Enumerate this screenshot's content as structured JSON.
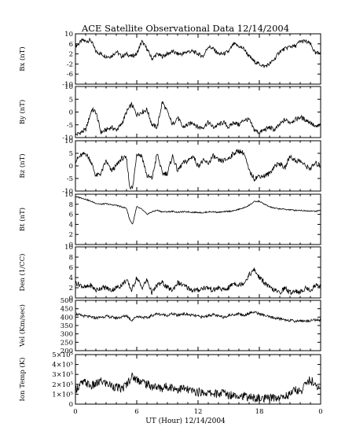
{
  "figure": {
    "title": "ACE Satellite Observational Data   12/14/2004",
    "xlabel": "UT (Hour)   12/14/2004"
  },
  "chart_data": [
    {
      "type": "line",
      "ylabel": "Bx (nT)",
      "xlim": [
        0,
        24
      ],
      "ylim": [
        -10,
        10
      ],
      "yticks": [
        "10",
        "6",
        "2",
        "-2",
        "-6",
        "-10"
      ],
      "xticks": [
        "0",
        "6",
        "12",
        "18",
        "0"
      ],
      "grid": false,
      "series": [
        {
          "x": [
            0,
            0.3,
            0.7,
            1,
            1.5,
            2,
            2.5,
            3,
            3.5,
            4,
            4.5,
            5,
            5.5,
            6,
            6.5,
            7,
            7.5,
            8,
            8.5,
            9,
            9.5,
            10,
            10.5,
            11,
            11.5,
            12,
            12.5,
            13,
            13.5,
            14,
            14.5,
            15,
            15.5,
            16,
            16.5,
            17,
            17.5,
            18,
            18.5,
            19,
            19.5,
            20,
            20.5,
            21,
            21.5,
            22,
            22.5,
            23,
            23.5,
            24
          ],
          "y": [
            5,
            6,
            7.5,
            7,
            7.5,
            3,
            2,
            1,
            1,
            3,
            1,
            2,
            1,
            2,
            7,
            4,
            0,
            2,
            1,
            2,
            3,
            2,
            2,
            3,
            3,
            2,
            1,
            5,
            4,
            2,
            2,
            3,
            6,
            5,
            4,
            1,
            -1,
            -2,
            -3,
            -2,
            0,
            3,
            4,
            5,
            5,
            7,
            7,
            6,
            2,
            3
          ]
        }
      ]
    },
    {
      "type": "line",
      "ylabel": "By (nT)",
      "xlim": [
        0,
        24
      ],
      "ylim": [
        -10,
        10
      ],
      "yticks": [
        "10",
        "5",
        "0",
        "-5",
        "-10"
      ],
      "xticks": [
        "0",
        "6",
        "12",
        "18",
        "0"
      ],
      "grid": false,
      "series": [
        {
          "x": [
            0,
            0.5,
            1,
            1.3,
            1.6,
            2,
            2.5,
            3,
            3.5,
            4,
            4.5,
            5,
            5.5,
            6,
            6.5,
            7,
            7.5,
            8,
            8.5,
            9,
            9.5,
            10,
            10.5,
            11,
            11.5,
            12,
            12.5,
            13,
            13.5,
            14,
            14.5,
            15,
            15.5,
            16,
            16.5,
            17,
            17.5,
            18,
            18.5,
            19,
            19.5,
            20,
            20.5,
            21,
            21.5,
            22,
            22.5,
            23,
            23.5,
            24
          ],
          "y": [
            -9,
            -8,
            -7,
            -3,
            1,
            0,
            -8,
            -7,
            -6,
            -7,
            -5,
            0,
            3,
            -1,
            0,
            1,
            -5,
            -6,
            4,
            0,
            -5,
            -2,
            -6,
            -5,
            -4,
            -6,
            -6,
            -4,
            -6,
            -5,
            -4,
            -6,
            -4,
            -5,
            -3,
            -3,
            -7,
            -8,
            -7,
            -6,
            -7,
            -5,
            -3,
            -4,
            -3,
            -2,
            -3,
            -4,
            -6,
            -5
          ]
        }
      ]
    },
    {
      "type": "line",
      "ylabel": "Bz (nT)",
      "xlim": [
        0,
        24
      ],
      "ylim": [
        -10,
        10
      ],
      "yticks": [
        "10",
        "5",
        "0",
        "-5",
        "-10"
      ],
      "xticks": [
        "0",
        "6",
        "12",
        "18",
        "0"
      ],
      "grid": false,
      "series": [
        {
          "x": [
            0,
            0.5,
            1,
            1.5,
            2,
            2.5,
            3,
            3.5,
            4,
            4.5,
            5,
            5.3,
            5.6,
            6,
            6.5,
            7,
            7.5,
            8,
            8.5,
            9,
            9.5,
            10,
            10.5,
            11,
            11.5,
            12,
            12.5,
            13,
            13.5,
            14,
            14.5,
            15,
            15.5,
            16,
            16.5,
            17,
            17.5,
            18,
            18.5,
            19,
            19.5,
            20,
            20.5,
            21,
            21.5,
            22,
            22.5,
            23,
            23.5,
            24
          ],
          "y": [
            2,
            4,
            5,
            2,
            -4,
            -3,
            2,
            -2,
            0,
            3,
            3,
            -8,
            -9,
            5,
            4,
            -4,
            -5,
            5,
            -3,
            -3,
            4,
            -2,
            1,
            2,
            4,
            0,
            2,
            1,
            4,
            2,
            2,
            3,
            5,
            6,
            5,
            -2,
            -5,
            -4,
            -4,
            -3,
            0,
            1,
            -1,
            4,
            2,
            2,
            0,
            -1,
            1,
            0
          ]
        }
      ]
    },
    {
      "type": "line",
      "ylabel": "Bt (nT)",
      "xlim": [
        0,
        24
      ],
      "ylim": [
        0,
        10
      ],
      "yticks": [
        "10",
        "8",
        "6",
        "4",
        "2",
        "0"
      ],
      "xticks": [
        "0",
        "6",
        "12",
        "18",
        "0"
      ],
      "grid": false,
      "series": [
        {
          "x": [
            0,
            0.5,
            1,
            1.5,
            2,
            2.5,
            3,
            3.5,
            4,
            4.5,
            5,
            5.3,
            5.6,
            6,
            6.5,
            7,
            7.5,
            8,
            8.5,
            9,
            9.5,
            10,
            10.5,
            11,
            11.5,
            12,
            12.5,
            13,
            13.5,
            14,
            14.5,
            15,
            15.5,
            16,
            16.5,
            17,
            17.5,
            18,
            18.5,
            19,
            19.5,
            20,
            20.5,
            21,
            21.5,
            22,
            22.5,
            23,
            23.5,
            24
          ],
          "y": [
            9.5,
            9.3,
            9,
            8.6,
            8.2,
            8,
            8.1,
            7.9,
            7.8,
            7.5,
            7.2,
            5,
            4,
            7.5,
            7,
            6,
            6.5,
            6.8,
            6.5,
            6.5,
            6.6,
            6.4,
            6.5,
            6.5,
            6.4,
            6.4,
            6.3,
            6.5,
            6.5,
            6.4,
            6.5,
            6.6,
            6.7,
            7,
            7.3,
            7.8,
            8.5,
            8.6,
            8,
            7.5,
            7.2,
            7.1,
            7,
            6.9,
            6.8,
            6.8,
            6.7,
            6.7,
            6.6,
            6.8
          ]
        }
      ]
    },
    {
      "type": "line",
      "ylabel": "Den (1/CC)",
      "xlim": [
        0,
        24
      ],
      "ylim": [
        0,
        10
      ],
      "yticks": [
        "10",
        "8",
        "6",
        "4",
        "2",
        "0"
      ],
      "xticks": [
        "0",
        "6",
        "12",
        "18",
        "0"
      ],
      "grid": false,
      "series": [
        {
          "x": [
            0,
            0.5,
            1,
            1.5,
            2,
            2.5,
            3,
            3.5,
            4,
            4.5,
            5,
            5.5,
            6,
            6.5,
            7,
            7.5,
            8,
            8.5,
            9,
            9.5,
            10,
            10.5,
            11,
            11.5,
            12,
            12.5,
            13,
            13.5,
            14,
            14.5,
            15,
            15.5,
            16,
            16.5,
            17,
            17.5,
            18,
            18.5,
            19,
            19.5,
            20,
            20.5,
            21,
            21.5,
            22,
            22.5,
            23,
            23.5,
            24
          ],
          "y": [
            3,
            2.5,
            2,
            2.5,
            1.5,
            2,
            2,
            1.5,
            2,
            2.5,
            3.5,
            1.5,
            4,
            2,
            3.5,
            1,
            2.5,
            3,
            2,
            1.5,
            3,
            2.5,
            2,
            1.5,
            1.5,
            2,
            2,
            1.5,
            2,
            1.5,
            2,
            3,
            2.5,
            3,
            4.5,
            5.5,
            4,
            3,
            2,
            1.5,
            1,
            2,
            1,
            1.5,
            1,
            2,
            1.5,
            2.5,
            2.5
          ]
        }
      ]
    },
    {
      "type": "line",
      "ylabel": "Vel (Km/sec)",
      "xlim": [
        0,
        24
      ],
      "ylim": [
        200,
        500
      ],
      "yticks": [
        "500",
        "450",
        "400",
        "350",
        "300",
        "250",
        "200"
      ],
      "xticks": [
        "0",
        "6",
        "12",
        "18",
        "0"
      ],
      "grid": false,
      "series": [
        {
          "x": [
            0,
            0.5,
            1,
            1.5,
            2,
            2.5,
            3,
            3.5,
            4,
            4.5,
            5,
            5.5,
            6,
            6.5,
            7,
            7.5,
            8,
            8.5,
            9,
            9.5,
            10,
            10.5,
            11,
            11.5,
            12,
            12.5,
            13,
            13.5,
            14,
            14.5,
            15,
            15.5,
            16,
            16.5,
            17,
            17.5,
            18,
            18.5,
            19,
            19.5,
            20,
            20.5,
            21,
            21.5,
            22,
            22.5,
            23,
            23.5,
            24
          ],
          "y": [
            420,
            410,
            405,
            400,
            395,
            400,
            405,
            400,
            395,
            400,
            410,
            380,
            405,
            400,
            395,
            410,
            420,
            415,
            410,
            420,
            410,
            420,
            415,
            410,
            405,
            400,
            410,
            415,
            405,
            400,
            410,
            415,
            420,
            410,
            425,
            430,
            420,
            410,
            400,
            395,
            390,
            385,
            380,
            375,
            380,
            375,
            380,
            385,
            380
          ]
        }
      ]
    },
    {
      "type": "line",
      "ylabel": "Ion Temp (K)",
      "xlim": [
        0,
        24
      ],
      "ylim": [
        0,
        500000
      ],
      "yticks": [
        "5×10⁵",
        "4×10⁵",
        "3×10⁵",
        "2×10⁵",
        "1×10⁵",
        "0"
      ],
      "xticks": [
        "0",
        "6",
        "12",
        "18",
        "0"
      ],
      "grid": false,
      "series": [
        {
          "x": [
            0,
            0.5,
            1,
            1.5,
            2,
            2.5,
            3,
            3.5,
            4,
            4.5,
            5,
            5.5,
            6,
            6.5,
            7,
            7.5,
            8,
            8.5,
            9,
            9.5,
            10,
            10.5,
            11,
            11.5,
            12,
            12.5,
            13,
            13.5,
            14,
            14.5,
            15,
            15.5,
            16,
            16.5,
            17,
            17.5,
            18,
            18.5,
            19,
            19.5,
            20,
            20.5,
            21,
            21.5,
            22,
            22.5,
            23,
            23.5,
            24
          ],
          "y": [
            150000,
            200000,
            220000,
            180000,
            200000,
            230000,
            210000,
            190000,
            170000,
            150000,
            200000,
            280000,
            250000,
            230000,
            200000,
            180000,
            170000,
            160000,
            180000,
            170000,
            150000,
            160000,
            140000,
            130000,
            120000,
            120000,
            110000,
            110000,
            100000,
            120000,
            90000,
            100000,
            90000,
            80000,
            70000,
            60000,
            60000,
            50000,
            60000,
            70000,
            60000,
            80000,
            100000,
            150000,
            120000,
            200000,
            250000,
            180000,
            150000
          ]
        }
      ]
    }
  ]
}
